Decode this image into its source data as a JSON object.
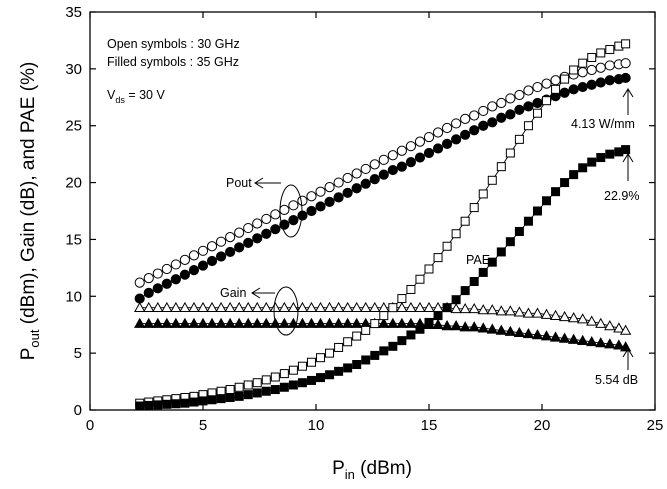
{
  "chart_data": {
    "type": "scatter",
    "xlabel": {
      "main": "P",
      "sub": "in",
      "rest": " (dBm)"
    },
    "ylabel": {
      "p1": "P",
      "s1": "out",
      "p2": " (dBm), Gain (dB), and PAE (%)"
    },
    "xlim": [
      0,
      25
    ],
    "ylim": [
      0,
      35
    ],
    "xticks": [
      0,
      5,
      10,
      15,
      20,
      25
    ],
    "yticks": [
      0,
      5,
      10,
      15,
      20,
      25,
      30,
      35
    ],
    "grid": false,
    "legend_text": {
      "line1": "Open symbols : 30 GHz",
      "line2": "Filled symbols : 35 GHz",
      "vds_main": "V",
      "vds_sub": "ds",
      "vds_rest": " = 30 V"
    },
    "annotations": {
      "pout": "Pout",
      "gain": "Gain",
      "pae": "PAE",
      "pout_max": "4.13 W/mm",
      "pae_max": "22.9%",
      "gain_end": "5.54 dB"
    },
    "x": [
      2.2,
      2.6,
      3.0,
      3.4,
      3.8,
      4.2,
      4.6,
      5.0,
      5.4,
      5.8,
      6.2,
      6.6,
      7.0,
      7.4,
      7.8,
      8.2,
      8.6,
      9.0,
      9.4,
      9.8,
      10.2,
      10.6,
      11.0,
      11.4,
      11.8,
      12.2,
      12.6,
      13.0,
      13.4,
      13.8,
      14.2,
      14.6,
      15.0,
      15.4,
      15.8,
      16.2,
      16.6,
      17.0,
      17.4,
      17.8,
      18.2,
      18.6,
      19.0,
      19.4,
      19.8,
      20.2,
      20.6,
      21.0,
      21.4,
      21.8,
      22.2,
      22.6,
      23.0,
      23.4,
      23.7
    ],
    "series": [
      {
        "name": "Pout",
        "style": "open-circle",
        "values": [
          11.2,
          11.6,
          12.0,
          12.4,
          12.8,
          13.2,
          13.6,
          14.0,
          14.4,
          14.8,
          15.2,
          15.6,
          16.0,
          16.4,
          16.8,
          17.2,
          17.6,
          18.0,
          18.4,
          18.8,
          19.2,
          19.6,
          20.0,
          20.4,
          20.8,
          21.2,
          21.6,
          22.0,
          22.4,
          22.8,
          23.2,
          23.6,
          24.0,
          24.4,
          24.8,
          25.2,
          25.6,
          25.9,
          26.3,
          26.7,
          27.0,
          27.4,
          27.7,
          28.1,
          28.4,
          28.7,
          29.0,
          29.3,
          29.5,
          29.7,
          29.9,
          30.1,
          30.3,
          30.4,
          30.5
        ]
      },
      {
        "name": "Pout",
        "style": "filled-circle",
        "values": [
          9.8,
          10.3,
          10.7,
          11.1,
          11.5,
          11.9,
          12.3,
          12.7,
          13.1,
          13.5,
          13.9,
          14.3,
          14.7,
          15.1,
          15.5,
          15.9,
          16.3,
          16.7,
          17.1,
          17.5,
          17.9,
          18.3,
          18.7,
          19.1,
          19.5,
          19.9,
          20.3,
          20.7,
          21.1,
          21.4,
          21.8,
          22.2,
          22.6,
          23.0,
          23.4,
          23.8,
          24.2,
          24.6,
          25.0,
          25.3,
          25.7,
          26.0,
          26.4,
          26.7,
          27.0,
          27.3,
          27.6,
          27.9,
          28.2,
          28.4,
          28.6,
          28.8,
          29.0,
          29.1,
          29.2
        ]
      },
      {
        "name": "Gain",
        "style": "open-triangle",
        "values": [
          9.0,
          9.0,
          9.0,
          9.0,
          9.0,
          9.0,
          9.0,
          9.0,
          9.0,
          9.0,
          9.0,
          9.0,
          9.0,
          9.0,
          9.0,
          9.0,
          9.0,
          9.0,
          9.0,
          9.0,
          9.0,
          9.0,
          9.0,
          9.0,
          9.0,
          9.0,
          9.0,
          9.0,
          9.0,
          9.0,
          9.0,
          9.0,
          9.0,
          9.0,
          9.0,
          8.9,
          8.9,
          8.9,
          8.8,
          8.8,
          8.7,
          8.7,
          8.6,
          8.5,
          8.5,
          8.4,
          8.3,
          8.2,
          8.1,
          8.0,
          7.8,
          7.6,
          7.4,
          7.2,
          7.0
        ]
      },
      {
        "name": "Gain",
        "style": "filled-triangle",
        "values": [
          7.6,
          7.6,
          7.6,
          7.6,
          7.6,
          7.6,
          7.6,
          7.6,
          7.6,
          7.6,
          7.6,
          7.6,
          7.6,
          7.6,
          7.6,
          7.6,
          7.6,
          7.6,
          7.6,
          7.6,
          7.6,
          7.6,
          7.6,
          7.6,
          7.6,
          7.6,
          7.6,
          7.6,
          7.6,
          7.6,
          7.6,
          7.6,
          7.5,
          7.5,
          7.4,
          7.4,
          7.3,
          7.3,
          7.2,
          7.1,
          7.0,
          6.9,
          6.8,
          6.7,
          6.6,
          6.5,
          6.4,
          6.3,
          6.2,
          6.1,
          6.0,
          5.9,
          5.8,
          5.7,
          5.54
        ]
      },
      {
        "name": "PAE",
        "style": "open-square",
        "values": [
          0.6,
          0.7,
          0.8,
          0.9,
          1.0,
          1.1,
          1.2,
          1.35,
          1.5,
          1.65,
          1.8,
          2.0,
          2.2,
          2.4,
          2.65,
          2.9,
          3.2,
          3.5,
          3.85,
          4.2,
          4.6,
          5.0,
          5.5,
          6.0,
          6.5,
          7.0,
          7.6,
          8.3,
          9.0,
          9.8,
          10.6,
          11.5,
          12.4,
          13.4,
          14.4,
          15.5,
          16.6,
          17.8,
          19.0,
          20.2,
          21.4,
          22.6,
          23.8,
          25.0,
          26.1,
          27.2,
          28.2,
          29.1,
          29.9,
          30.5,
          31.0,
          31.4,
          31.7,
          32.0,
          32.2
        ]
      },
      {
        "name": "PAE",
        "style": "filled-square",
        "values": [
          0.35,
          0.4,
          0.45,
          0.5,
          0.55,
          0.6,
          0.7,
          0.8,
          0.9,
          1.0,
          1.1,
          1.2,
          1.35,
          1.5,
          1.65,
          1.8,
          2.0,
          2.2,
          2.4,
          2.6,
          2.85,
          3.1,
          3.4,
          3.7,
          4.0,
          4.4,
          4.8,
          5.2,
          5.6,
          6.1,
          6.6,
          7.1,
          7.7,
          8.3,
          9.0,
          9.7,
          10.5,
          11.3,
          12.1,
          13.0,
          13.9,
          14.8,
          15.7,
          16.6,
          17.5,
          18.4,
          19.2,
          20.0,
          20.7,
          21.3,
          21.8,
          22.2,
          22.5,
          22.7,
          22.9
        ]
      }
    ]
  }
}
